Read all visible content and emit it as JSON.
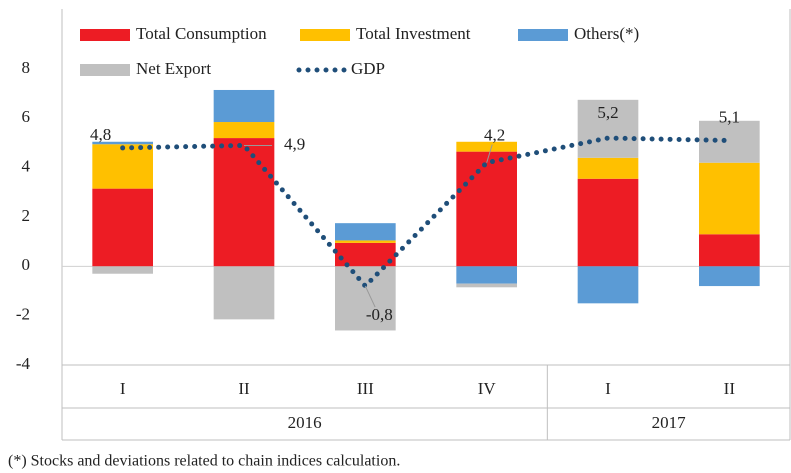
{
  "chart_data": {
    "type": "stacked_bar_line",
    "categories": [
      "I",
      "II",
      "III",
      "IV",
      "I",
      "II"
    ],
    "x_groups": [
      {
        "label": "2016",
        "count": 4
      },
      {
        "label": "2017",
        "count": 2
      }
    ],
    "series": [
      {
        "name": "Total Consumption",
        "color": "#ed1c24",
        "type": "bar",
        "values": [
          3.15,
          5.2,
          0.95,
          4.65,
          3.55,
          1.3
        ]
      },
      {
        "name": "Total Investment",
        "color": "#ffc000",
        "type": "bar",
        "values": [
          1.8,
          0.65,
          0.1,
          0.4,
          0.85,
          2.9
        ]
      },
      {
        "name": "Others(*)",
        "color": "#5b9bd5",
        "type": "bar",
        "values": [
          0.1,
          1.3,
          0.7,
          -0.7,
          -1.5,
          -0.8
        ]
      },
      {
        "name": "Net Export",
        "color": "#c0c0c0",
        "type": "bar",
        "values": [
          -0.3,
          -2.15,
          -2.6,
          -0.15,
          2.35,
          1.7
        ]
      },
      {
        "name": "GDP",
        "color": "#1f4e79",
        "type": "line",
        "values": [
          4.8,
          4.9,
          -0.8,
          4.2,
          5.2,
          5.1
        ],
        "value_labels": [
          "4,8",
          "4,9",
          "-0,8",
          "4,2",
          "5,2",
          "5,1"
        ]
      }
    ],
    "ylim": [
      -4,
      8
    ],
    "yticks": [
      -4,
      -2,
      0,
      2,
      4,
      6,
      8
    ],
    "grid": false,
    "legend": "top",
    "footnote": "(*) Stocks and deviations related to chain indices calculation."
  }
}
